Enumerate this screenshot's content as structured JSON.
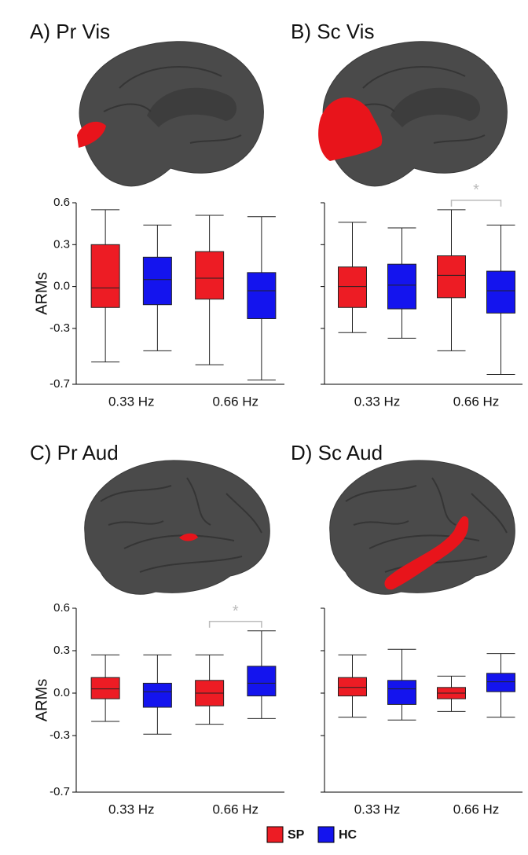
{
  "chart_data": [
    {
      "type": "box",
      "title": "A) Pr Vis",
      "ylabel": "ARMs",
      "categories": [
        "0.33 Hz",
        "0.66 Hz"
      ],
      "series": [
        {
          "values": [
            {
              "whislo": -0.54,
              "q1": -0.15,
              "med": -0.01,
              "q3": 0.3,
              "whishi": 0.55
            },
            {
              "whislo": -0.56,
              "q1": -0.09,
              "med": 0.06,
              "q3": 0.25,
              "whishi": 0.51
            }
          ]
        },
        {
          "values": [
            {
              "whislo": -0.46,
              "q1": -0.13,
              "med": 0.05,
              "q3": 0.21,
              "whishi": 0.44
            },
            {
              "whislo": -0.67,
              "q1": -0.23,
              "med": -0.03,
              "q3": 0.1,
              "whishi": 0.5
            }
          ]
        }
      ],
      "ylim": [
        -0.7,
        0.6
      ],
      "yticks": [
        0.6,
        0.3,
        {
          "value": 0,
          "label": "0.0"
        },
        -0.3,
        -0.7
      ],
      "ytick_labels": true
    },
    {
      "type": "box",
      "title": "B) Sc Vis",
      "categories": [
        "0.33 Hz",
        "0.66 Hz"
      ],
      "series": [
        {
          "values": [
            {
              "whislo": -0.33,
              "q1": -0.15,
              "med": 0.0,
              "q3": 0.14,
              "whishi": 0.46
            },
            {
              "whislo": -0.46,
              "q1": -0.08,
              "med": 0.08,
              "q3": 0.22,
              "whishi": 0.55
            }
          ]
        },
        {
          "values": [
            {
              "whislo": -0.37,
              "q1": -0.16,
              "med": 0.01,
              "q3": 0.16,
              "whishi": 0.42
            },
            {
              "whislo": -0.63,
              "q1": -0.19,
              "med": -0.03,
              "q3": 0.11,
              "whishi": 0.44
            }
          ]
        }
      ],
      "ylim": [
        -0.7,
        0.6
      ],
      "yticks": [
        0.6,
        0.3,
        0,
        -0.3,
        -0.7
      ],
      "ytick_labels": false,
      "annotation": "*"
    },
    {
      "type": "box",
      "title": "C) Pr Aud",
      "ylabel": "ARMs",
      "categories": [
        "0.33 Hz",
        "0.66 Hz"
      ],
      "series": [
        {
          "values": [
            {
              "whislo": -0.2,
              "q1": -0.04,
              "med": 0.03,
              "q3": 0.11,
              "whishi": 0.27
            },
            {
              "whislo": -0.22,
              "q1": -0.09,
              "med": 0.0,
              "q3": 0.09,
              "whishi": 0.27
            }
          ]
        },
        {
          "values": [
            {
              "whislo": -0.29,
              "q1": -0.1,
              "med": 0.01,
              "q3": 0.07,
              "whishi": 0.27
            },
            {
              "whislo": -0.18,
              "q1": -0.02,
              "med": 0.07,
              "q3": 0.19,
              "whishi": 0.44
            }
          ]
        }
      ],
      "ylim": [
        -0.7,
        0.6
      ],
      "yticks": [
        0.6,
        0.3,
        {
          "value": 0,
          "label": "0.0"
        },
        -0.3,
        -0.7
      ],
      "ytick_labels": true,
      "annotation": "*"
    },
    {
      "type": "box",
      "title": "D) Sc Aud",
      "categories": [
        "0.33 Hz",
        "0.66 Hz"
      ],
      "series": [
        {
          "values": [
            {
              "whislo": -0.17,
              "q1": -0.02,
              "med": 0.04,
              "q3": 0.11,
              "whishi": 0.27
            },
            {
              "whislo": -0.13,
              "q1": -0.04,
              "med": 0.0,
              "q3": 0.04,
              "whishi": 0.12
            }
          ]
        },
        {
          "values": [
            {
              "whislo": -0.19,
              "q1": -0.08,
              "med": 0.03,
              "q3": 0.09,
              "whishi": 0.31
            },
            {
              "whislo": -0.17,
              "q1": 0.01,
              "med": 0.08,
              "q3": 0.14,
              "whishi": 0.28
            }
          ]
        }
      ],
      "ylim": [
        -0.7,
        0.6
      ],
      "yticks": [
        0.6,
        0.3,
        0,
        -0.3,
        -0.7
      ],
      "ytick_labels": false
    }
  ],
  "legend": [
    {
      "name": "SP",
      "color": "#ed1c24"
    },
    {
      "name": "HC",
      "color": "#1414ee"
    }
  ]
}
